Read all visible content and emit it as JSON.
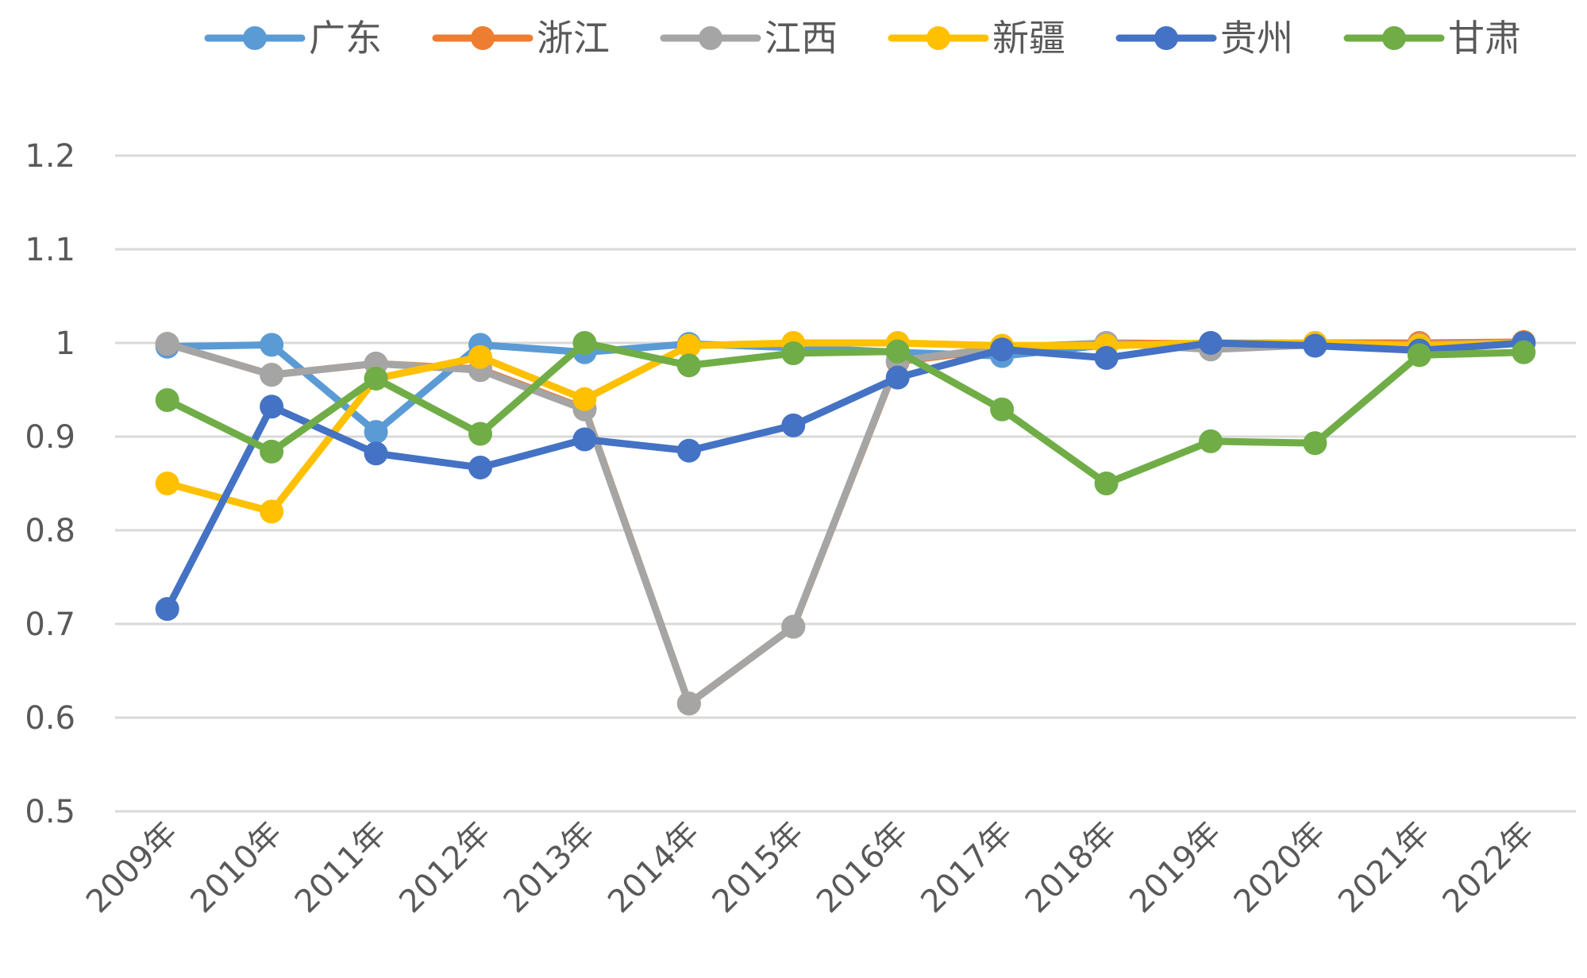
{
  "chart_data": {
    "type": "line",
    "title": "",
    "xlabel": "",
    "ylabel": "",
    "ylim": [
      0.5,
      1.2
    ],
    "y_ticks": [
      "0.5",
      "0.6",
      "0.7",
      "0.8",
      "0.9",
      "1",
      "1.1",
      "1.2"
    ],
    "grid": true,
    "legend_position": "top",
    "categories": [
      "2009年",
      "2010年",
      "2011年",
      "2012年",
      "2013年",
      "2014年",
      "2015年",
      "2016年",
      "2017年",
      "2018年",
      "2019年",
      "2020年",
      "2021年",
      "2022年"
    ],
    "series": [
      {
        "name": "广东",
        "color": "#5b9bd5",
        "values": [
          0.996,
          0.998,
          0.905,
          0.998,
          0.99,
          0.999,
          0.995,
          0.99,
          0.986,
          0.998,
          0.999,
          0.999,
          0.996,
          1.0
        ]
      },
      {
        "name": "浙江",
        "color": "#ed7d31",
        "values": [
          0.999,
          0.966,
          0.978,
          0.972,
          0.93,
          0.615,
          0.697,
          0.98,
          0.994,
          1.0,
          0.999,
          1.0,
          1.0,
          1.001
        ]
      },
      {
        "name": "江西",
        "color": "#a5a5a5",
        "values": [
          0.999,
          0.966,
          0.978,
          0.971,
          0.929,
          0.615,
          0.697,
          0.981,
          0.995,
          1.0,
          0.993,
          0.998,
          0.998,
          1.0
        ]
      },
      {
        "name": "新疆",
        "color": "#ffc000",
        "values": [
          0.85,
          0.82,
          0.962,
          0.985,
          0.94,
          0.997,
          1.0,
          1.0,
          0.997,
          0.997,
          1.0,
          1.0,
          0.997,
          1.0
        ]
      },
      {
        "name": "贵州",
        "color": "#4472c4",
        "values": [
          0.716,
          0.932,
          0.882,
          0.867,
          0.897,
          0.885,
          0.912,
          0.963,
          0.993,
          0.984,
          1.0,
          0.997,
          0.992,
          1.0
        ]
      },
      {
        "name": "甘肃",
        "color": "#70ad47",
        "values": [
          0.939,
          0.884,
          0.962,
          0.903,
          1.0,
          0.976,
          0.989,
          0.991,
          0.929,
          0.85,
          0.895,
          0.893,
          0.987,
          0.99
        ]
      }
    ]
  }
}
